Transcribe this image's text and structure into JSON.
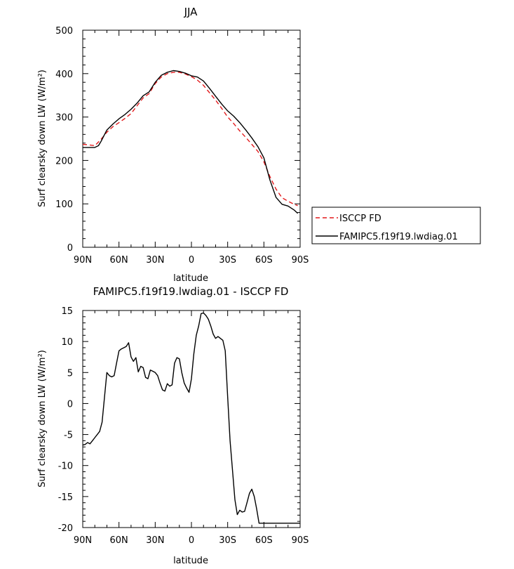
{
  "chart_data": [
    {
      "type": "line",
      "title": "JJA",
      "xlabel": "latitude",
      "ylabel": "Surf clearsky down LW (W/m²)",
      "xlim": [
        -90,
        90
      ],
      "ylim": [
        0,
        500
      ],
      "xticks": [
        -90,
        -60,
        -30,
        0,
        30,
        60,
        90
      ],
      "xtick_labels": [
        "90N",
        "60N",
        "30N",
        "0",
        "30S",
        "60S",
        "90S"
      ],
      "yticks": [
        0,
        100,
        200,
        300,
        400,
        500
      ],
      "ytick_labels": [
        "0",
        "100",
        "200",
        "300",
        "400",
        "500"
      ],
      "legend_position": "right",
      "series": [
        {
          "name": "ISCCP FD",
          "color": "#e31a1c",
          "dash": "dashed",
          "x": [
            -90,
            -85,
            -80,
            -75,
            -70,
            -65,
            -60,
            -55,
            -50,
            -45,
            -40,
            -35,
            -30,
            -25,
            -20,
            -15,
            -10,
            -5,
            0,
            5,
            10,
            15,
            20,
            25,
            30,
            35,
            40,
            45,
            50,
            55,
            60,
            65,
            70,
            75,
            80,
            85,
            88
          ],
          "y": [
            237,
            236,
            234,
            248,
            265,
            278,
            287,
            297,
            308,
            326,
            344,
            354,
            377,
            392,
            400,
            403,
            403,
            399,
            393,
            385,
            373,
            356,
            339,
            320,
            300,
            285,
            268,
            253,
            237,
            221,
            197,
            163,
            134,
            114,
            106,
            99,
            96
          ]
        },
        {
          "name": "FAMIPC5.f19f19.lwdiag.01",
          "color": "#000000",
          "dash": "solid",
          "x": [
            -90,
            -85,
            -80,
            -77,
            -75,
            -70,
            -65,
            -60,
            -55,
            -50,
            -45,
            -40,
            -35,
            -30,
            -25,
            -20,
            -15,
            -10,
            -5,
            0,
            5,
            10,
            15,
            20,
            25,
            30,
            35,
            40,
            45,
            50,
            55,
            60,
            65,
            70,
            75,
            80,
            85,
            88
          ],
          "y": [
            230,
            230,
            230,
            234,
            243,
            270,
            284,
            296,
            306,
            318,
            332,
            349,
            358,
            380,
            396,
            403,
            407,
            405,
            401,
            395,
            392,
            383,
            366,
            348,
            330,
            314,
            302,
            287,
            270,
            252,
            232,
            206,
            155,
            115,
            99,
            95,
            86,
            78
          ]
        }
      ]
    },
    {
      "type": "line",
      "title": "FAMIPC5.f19f19.lwdiag.01 - ISCCP FD",
      "xlabel": "latitude",
      "ylabel": "Surf clearsky down LW (W/m²)",
      "xlim": [
        -90,
        90
      ],
      "ylim": [
        -20,
        15
      ],
      "xticks": [
        -90,
        -60,
        -30,
        0,
        30,
        60,
        90
      ],
      "xtick_labels": [
        "90N",
        "60N",
        "30N",
        "0",
        "30S",
        "60S",
        "90S"
      ],
      "yticks": [
        -20,
        -15,
        -10,
        -5,
        0,
        5,
        10,
        15
      ],
      "ytick_labels": [
        "-20",
        "-15",
        "-10",
        "-5",
        "0",
        "5",
        "10",
        "15"
      ],
      "series": [
        {
          "color": "#000000",
          "dash": "solid",
          "x": [
            -90,
            -88,
            -86,
            -84,
            -82,
            -80,
            -78,
            -76,
            -74,
            -72,
            -70,
            -68,
            -66,
            -64,
            -62,
            -60,
            -58,
            -56,
            -54,
            -52,
            -50,
            -48,
            -46,
            -44,
            -42,
            -40,
            -38,
            -36,
            -34,
            -32,
            -30,
            -28,
            -26,
            -24,
            -22,
            -20,
            -18,
            -16,
            -14,
            -12,
            -10,
            -8,
            -6,
            -4,
            -2,
            0,
            2,
            4,
            6,
            8,
            10,
            12,
            14,
            16,
            18,
            20,
            22,
            24,
            26,
            28,
            30,
            32,
            34,
            36,
            38,
            40,
            42,
            44,
            46,
            48,
            50,
            52,
            54,
            56,
            58,
            60,
            62,
            64,
            66,
            68,
            70,
            72,
            74,
            76,
            78,
            80,
            82,
            84,
            86,
            88,
            90
          ],
          "y": [
            -6.7,
            -6.6,
            -6.3,
            -6.5,
            -6.0,
            -5.5,
            -5.0,
            -4.5,
            -3.0,
            1.0,
            5.0,
            4.5,
            4.3,
            4.5,
            6.5,
            8.5,
            8.8,
            9.0,
            9.2,
            9.8,
            7.5,
            6.8,
            7.4,
            5.1,
            6.0,
            5.8,
            4.2,
            4.0,
            5.4,
            5.2,
            5.0,
            4.5,
            3.3,
            2.2,
            2.0,
            3.2,
            2.8,
            3.0,
            6.5,
            7.4,
            7.2,
            5.0,
            3.3,
            2.5,
            1.8,
            4.0,
            8.0,
            11.0,
            12.5,
            14.5,
            14.6,
            14.2,
            13.6,
            12.5,
            11.2,
            10.5,
            10.8,
            10.5,
            10.2,
            8.5,
            1.0,
            -6.0,
            -10.8,
            -15.5,
            -17.9,
            -17.2,
            -17.5,
            -17.4,
            -16.0,
            -14.5,
            -13.8,
            -15.0,
            -17.0,
            -19.3,
            -19.3,
            -19.3,
            -19.3,
            -19.3,
            -19.3,
            -19.3,
            -19.3,
            -19.3,
            -19.3,
            -19.3,
            -19.3,
            -19.3,
            -19.3,
            -19.3,
            -19.3,
            -19.3,
            -19.3
          ]
        }
      ]
    }
  ]
}
